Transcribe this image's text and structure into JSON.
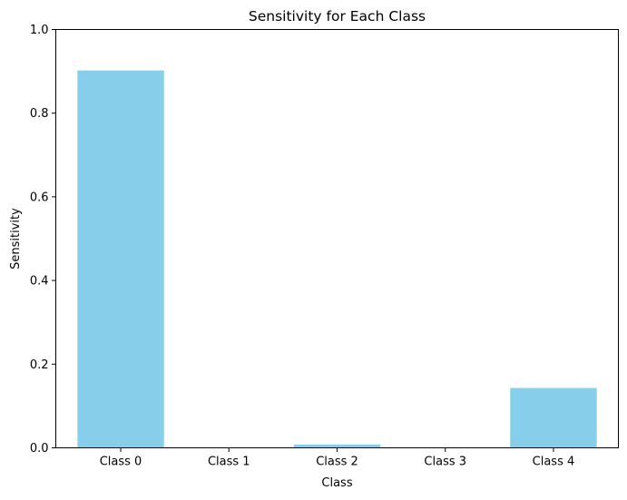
{
  "chart_data": {
    "type": "bar",
    "title": "Sensitivity for Each Class",
    "xlabel": "Class",
    "ylabel": "Sensitivity",
    "categories": [
      "Class 0",
      "Class 1",
      "Class 2",
      "Class 3",
      "Class 4"
    ],
    "values": [
      0.902,
      0.0,
      0.008,
      0.0,
      0.143
    ],
    "ylim": [
      0,
      1.0
    ],
    "yticks": [
      0.0,
      0.2,
      0.4,
      0.6,
      0.8,
      1.0
    ],
    "ytick_labels": [
      "0.0",
      "0.2",
      "0.4",
      "0.6",
      "0.8",
      "1.0"
    ],
    "bar_color": "#87ceeb",
    "grid": false,
    "legend": "none"
  }
}
